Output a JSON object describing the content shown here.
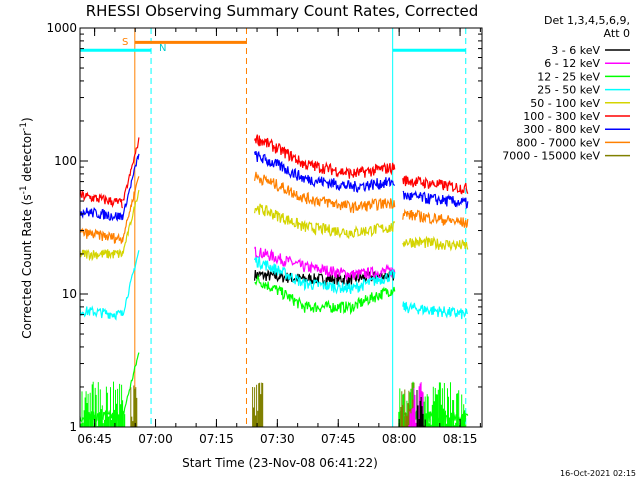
{
  "chart_data": {
    "type": "line",
    "title": "RHESSI Observing Summary Count Rates, Corrected",
    "xlabel": "Start Time (23-Nov-08 06:41:22)",
    "ylabel_main": "Corrected Count Rate (s",
    "ylabel_sup1": "-1",
    "ylabel_mid": " detector",
    "ylabel_sup2": "-1",
    "ylabel_end": ")",
    "y_scale": "log",
    "ylim": [
      1,
      1000
    ],
    "xlim_minutes": [
      0,
      99
    ],
    "y_ticks": [
      {
        "value": 1,
        "label": "1"
      },
      {
        "value": 10,
        "label": "10"
      },
      {
        "value": 100,
        "label": "100"
      },
      {
        "value": 1000,
        "label": "1000"
      }
    ],
    "x_ticks": [
      {
        "t": 3.6,
        "label": "06:45"
      },
      {
        "t": 18.6,
        "label": "07:00"
      },
      {
        "t": 33.6,
        "label": "07:15"
      },
      {
        "t": 48.6,
        "label": "07:30"
      },
      {
        "t": 63.6,
        "label": "07:45"
      },
      {
        "t": 78.6,
        "label": "08:00"
      },
      {
        "t": 93.6,
        "label": "08:15"
      }
    ],
    "legend_header": [
      "Det 1,3,4,5,6,9,",
      "Att 0"
    ],
    "legend_placement": "right",
    "flag_labels": {
      "saa": "S",
      "night": "N"
    },
    "flags": [
      {
        "name": "S",
        "color": "#ff8000",
        "start": 13.5,
        "end": 41.0,
        "level": 780
      },
      {
        "name": "N-a",
        "color": "#00ffff",
        "start": 0,
        "end": 17.5,
        "level": 680
      },
      {
        "name": "N-b",
        "color": "#00ffff",
        "start": 77.0,
        "end": 95.0,
        "level": 680
      }
    ],
    "vlines": [
      {
        "t": 13.5,
        "color": "#ff8000",
        "dash": false
      },
      {
        "t": 41.0,
        "color": "#ff8000",
        "dash": true
      },
      {
        "t": 17.5,
        "color": "#00ffff",
        "dash": true
      },
      {
        "t": 77.0,
        "color": "#00ffff",
        "dash": false
      },
      {
        "t": 95.0,
        "color": "#00ffff",
        "dash": true
      }
    ],
    "gap_minutes": [
      14.5,
      43.0
    ],
    "series": [
      {
        "name": "3 - 6 keV",
        "color": "#000000",
        "pre": null,
        "post": [
          14,
          13,
          13,
          14
        ],
        "pre2": null
      },
      {
        "name": "6 - 12 keV",
        "color": "#ff00ff",
        "pre": null,
        "post": [
          21,
          16,
          14,
          15
        ],
        "pre2": null
      },
      {
        "name": "12 - 25 keV",
        "color": "#00ff00",
        "pre": [
          1.2,
          1.2
        ],
        "post": [
          13,
          8,
          8,
          11
        ],
        "post2": [
          1.2,
          1.2
        ]
      },
      {
        "name": "25 - 50 keV",
        "color": "#00ffff",
        "pre": [
          7.5,
          7.0
        ],
        "post": [
          18,
          12,
          11,
          14
        ],
        "post2": [
          8,
          7
        ]
      },
      {
        "name": "50 - 100 keV",
        "color": "#d4d400",
        "pre": [
          20,
          20
        ],
        "post": [
          45,
          32,
          29,
          32
        ],
        "post2": [
          25,
          23
        ]
      },
      {
        "name": "100 - 300 keV",
        "color": "#ff0000",
        "pre": [
          55,
          48
        ],
        "post": [
          150,
          95,
          80,
          90
        ],
        "post2": [
          72,
          62
        ]
      },
      {
        "name": "300 - 800 keV",
        "color": "#0000ff",
        "pre": [
          42,
          38
        ],
        "post": [
          110,
          74,
          64,
          70
        ],
        "post2": [
          55,
          48
        ]
      },
      {
        "name": "800 - 7000 keV",
        "color": "#ff8000",
        "pre": [
          29,
          26
        ],
        "post": [
          77,
          53,
          45,
          49
        ],
        "post2": [
          40,
          34
        ]
      },
      {
        "name": "7000 - 15000 keV",
        "color": "#808000",
        "pre": null,
        "post": null,
        "pre2": null
      }
    ],
    "grid": false
  },
  "footer": {
    "timestamp": "16-Oct-2021 02:15"
  }
}
